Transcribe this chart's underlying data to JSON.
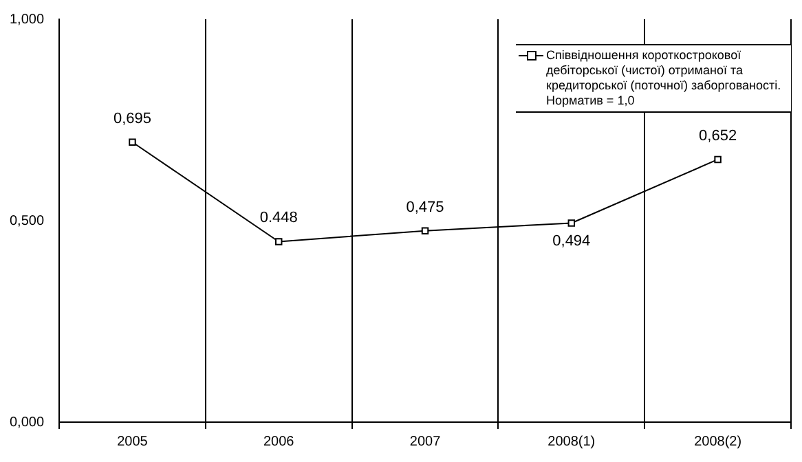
{
  "chart_data": {
    "type": "line",
    "categories": [
      "2005",
      "2006",
      "2007",
      "2008(1)",
      "2008(2)"
    ],
    "series": [
      {
        "name": "Співвідношення короткострокової дебіторської (чистої) отриманої та кредиторської (поточної) заборгованості. Норматив = 1,0",
        "color": "#000000",
        "values": [
          0.695,
          0.448,
          0.475,
          0.494,
          0.652
        ],
        "value_labels": [
          "0,695",
          "0.448",
          "0,475",
          "0,494",
          "0,652"
        ]
      }
    ],
    "ylim": [
      0,
      1
    ],
    "yticks": [
      {
        "value": 0,
        "label": "0,000"
      },
      {
        "value": 0.5,
        "label": "0,500"
      },
      {
        "value": 1,
        "label": "1,000"
      }
    ],
    "grid": "x",
    "legend": "top right",
    "marker": "square",
    "line_style": "solid"
  }
}
